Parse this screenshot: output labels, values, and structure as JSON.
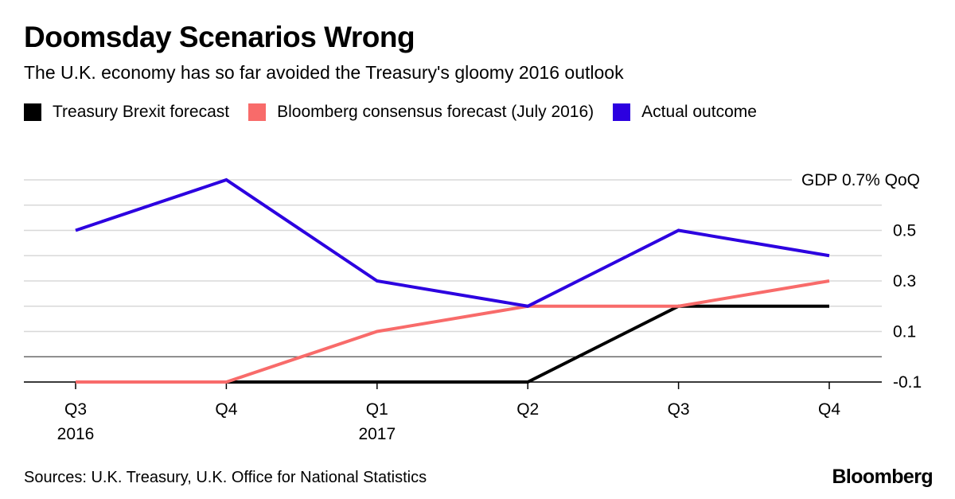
{
  "header": {
    "title": "Doomsday Scenarios Wrong",
    "subtitle": "The U.K. economy has so far avoided the Treasury's gloomy 2016 outlook"
  },
  "footer": {
    "source": "Sources: U.K. Treasury, U.K. Office for National Statistics",
    "brand": "Bloomberg"
  },
  "chart_data": {
    "type": "line",
    "title": "Doomsday Scenarios Wrong",
    "subtitle": "The U.K. economy has so far avoided the Treasury's gloomy 2016 outlook",
    "xlabel": "",
    "ylabel": "GDP 0.7% QoQ",
    "categories": [
      "Q3",
      "Q4",
      "Q1",
      "Q2",
      "Q3",
      "Q4"
    ],
    "year_labels": [
      "2016",
      "",
      "2017",
      "",
      "",
      ""
    ],
    "ylim": [
      -0.1,
      0.7
    ],
    "yticks": [
      -0.1,
      0.1,
      0.3,
      0.5,
      0.7
    ],
    "ytick_labels": [
      "-0.1",
      "0.1",
      "0.3",
      "0.5",
      "GDP 0.7% QoQ"
    ],
    "grid": true,
    "legend_position": "top-left",
    "series": [
      {
        "name": "Treasury Brexit forecast",
        "color": "#000000",
        "values": [
          -0.1,
          -0.1,
          -0.1,
          -0.1,
          0.2,
          0.2
        ]
      },
      {
        "name": "Bloomberg consensus forecast (July 2016)",
        "color": "#f86b6a",
        "values": [
          -0.1,
          -0.1,
          0.1,
          0.2,
          0.2,
          0.3
        ]
      },
      {
        "name": "Actual outcome",
        "color": "#2c00e0",
        "values": [
          0.5,
          0.7,
          0.3,
          0.2,
          0.5,
          0.4
        ]
      }
    ]
  }
}
